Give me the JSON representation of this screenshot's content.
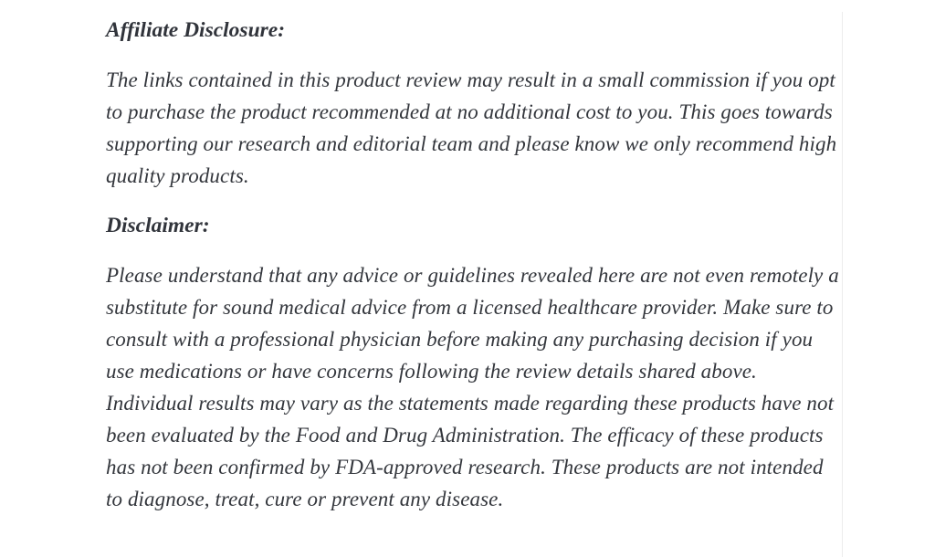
{
  "article": {
    "affiliate": {
      "heading": "Affiliate Disclosure:",
      "body": "The links contained in this product review may result in a small commission if you opt to purchase the product recommended at no additional cost to you. This goes towards supporting our research and editorial team and please know we only recommend high quality products."
    },
    "disclaimer": {
      "heading": "Disclaimer:",
      "body": "Please understand that any advice or guidelines revealed here are not even remotely a substitute for sound medical advice from a licensed healthcare provider. Make sure to consult with a professional physician before making any purchasing decision if you use medications or have concerns following the review details shared above. Individual results may vary as the statements made regarding these products have not been evaluated by the Food and Drug Administration. The efficacy of these products has not been confirmed by FDA-approved research. These products are not intended to diagnose, treat, cure or prevent any disease."
    },
    "colors": {
      "text": "#33363c",
      "background": "#ffffff",
      "divider": "#ececec"
    }
  }
}
